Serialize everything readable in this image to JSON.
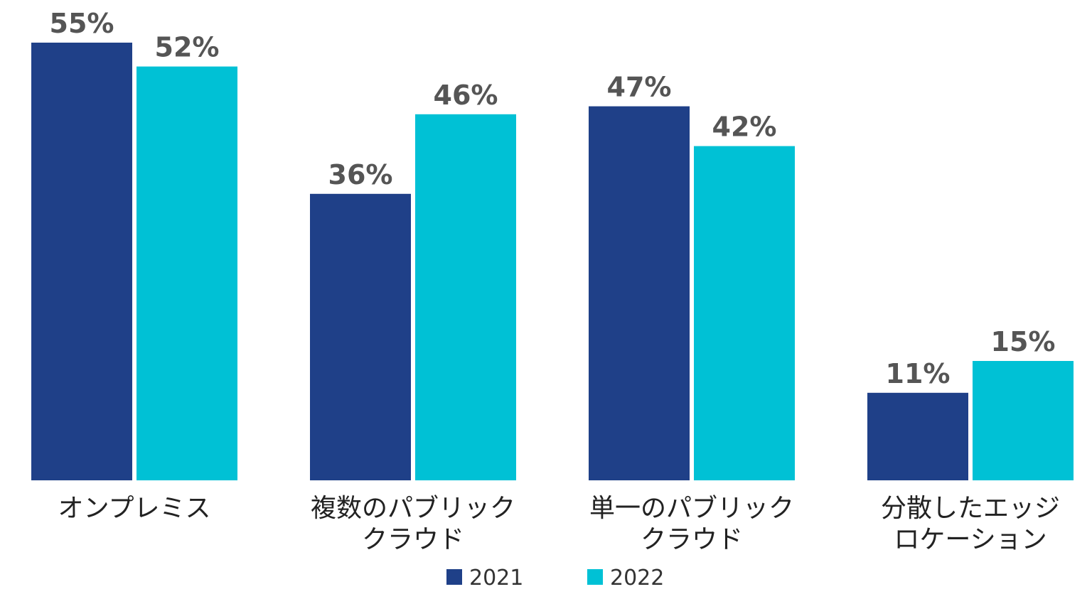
{
  "chart_data": {
    "type": "bar",
    "categories": [
      [
        "オンプレミス"
      ],
      [
        "複数のパブリック",
        "クラウド"
      ],
      [
        "単一のパブリック",
        "クラウド"
      ],
      [
        "分散したエッジ",
        "ロケーション"
      ]
    ],
    "series": [
      {
        "name": "2021",
        "color": "#1f4088",
        "values": [
          55,
          36,
          47,
          11
        ],
        "labels": [
          "55%",
          "36%",
          "47%",
          "11%"
        ]
      },
      {
        "name": "2022",
        "color": "#00c1d5",
        "values": [
          52,
          46,
          42,
          15
        ],
        "labels": [
          "52%",
          "46%",
          "42%",
          "15%"
        ]
      }
    ],
    "ylim": [
      0,
      60
    ],
    "grid": false,
    "legend_position": "bottom-center"
  }
}
